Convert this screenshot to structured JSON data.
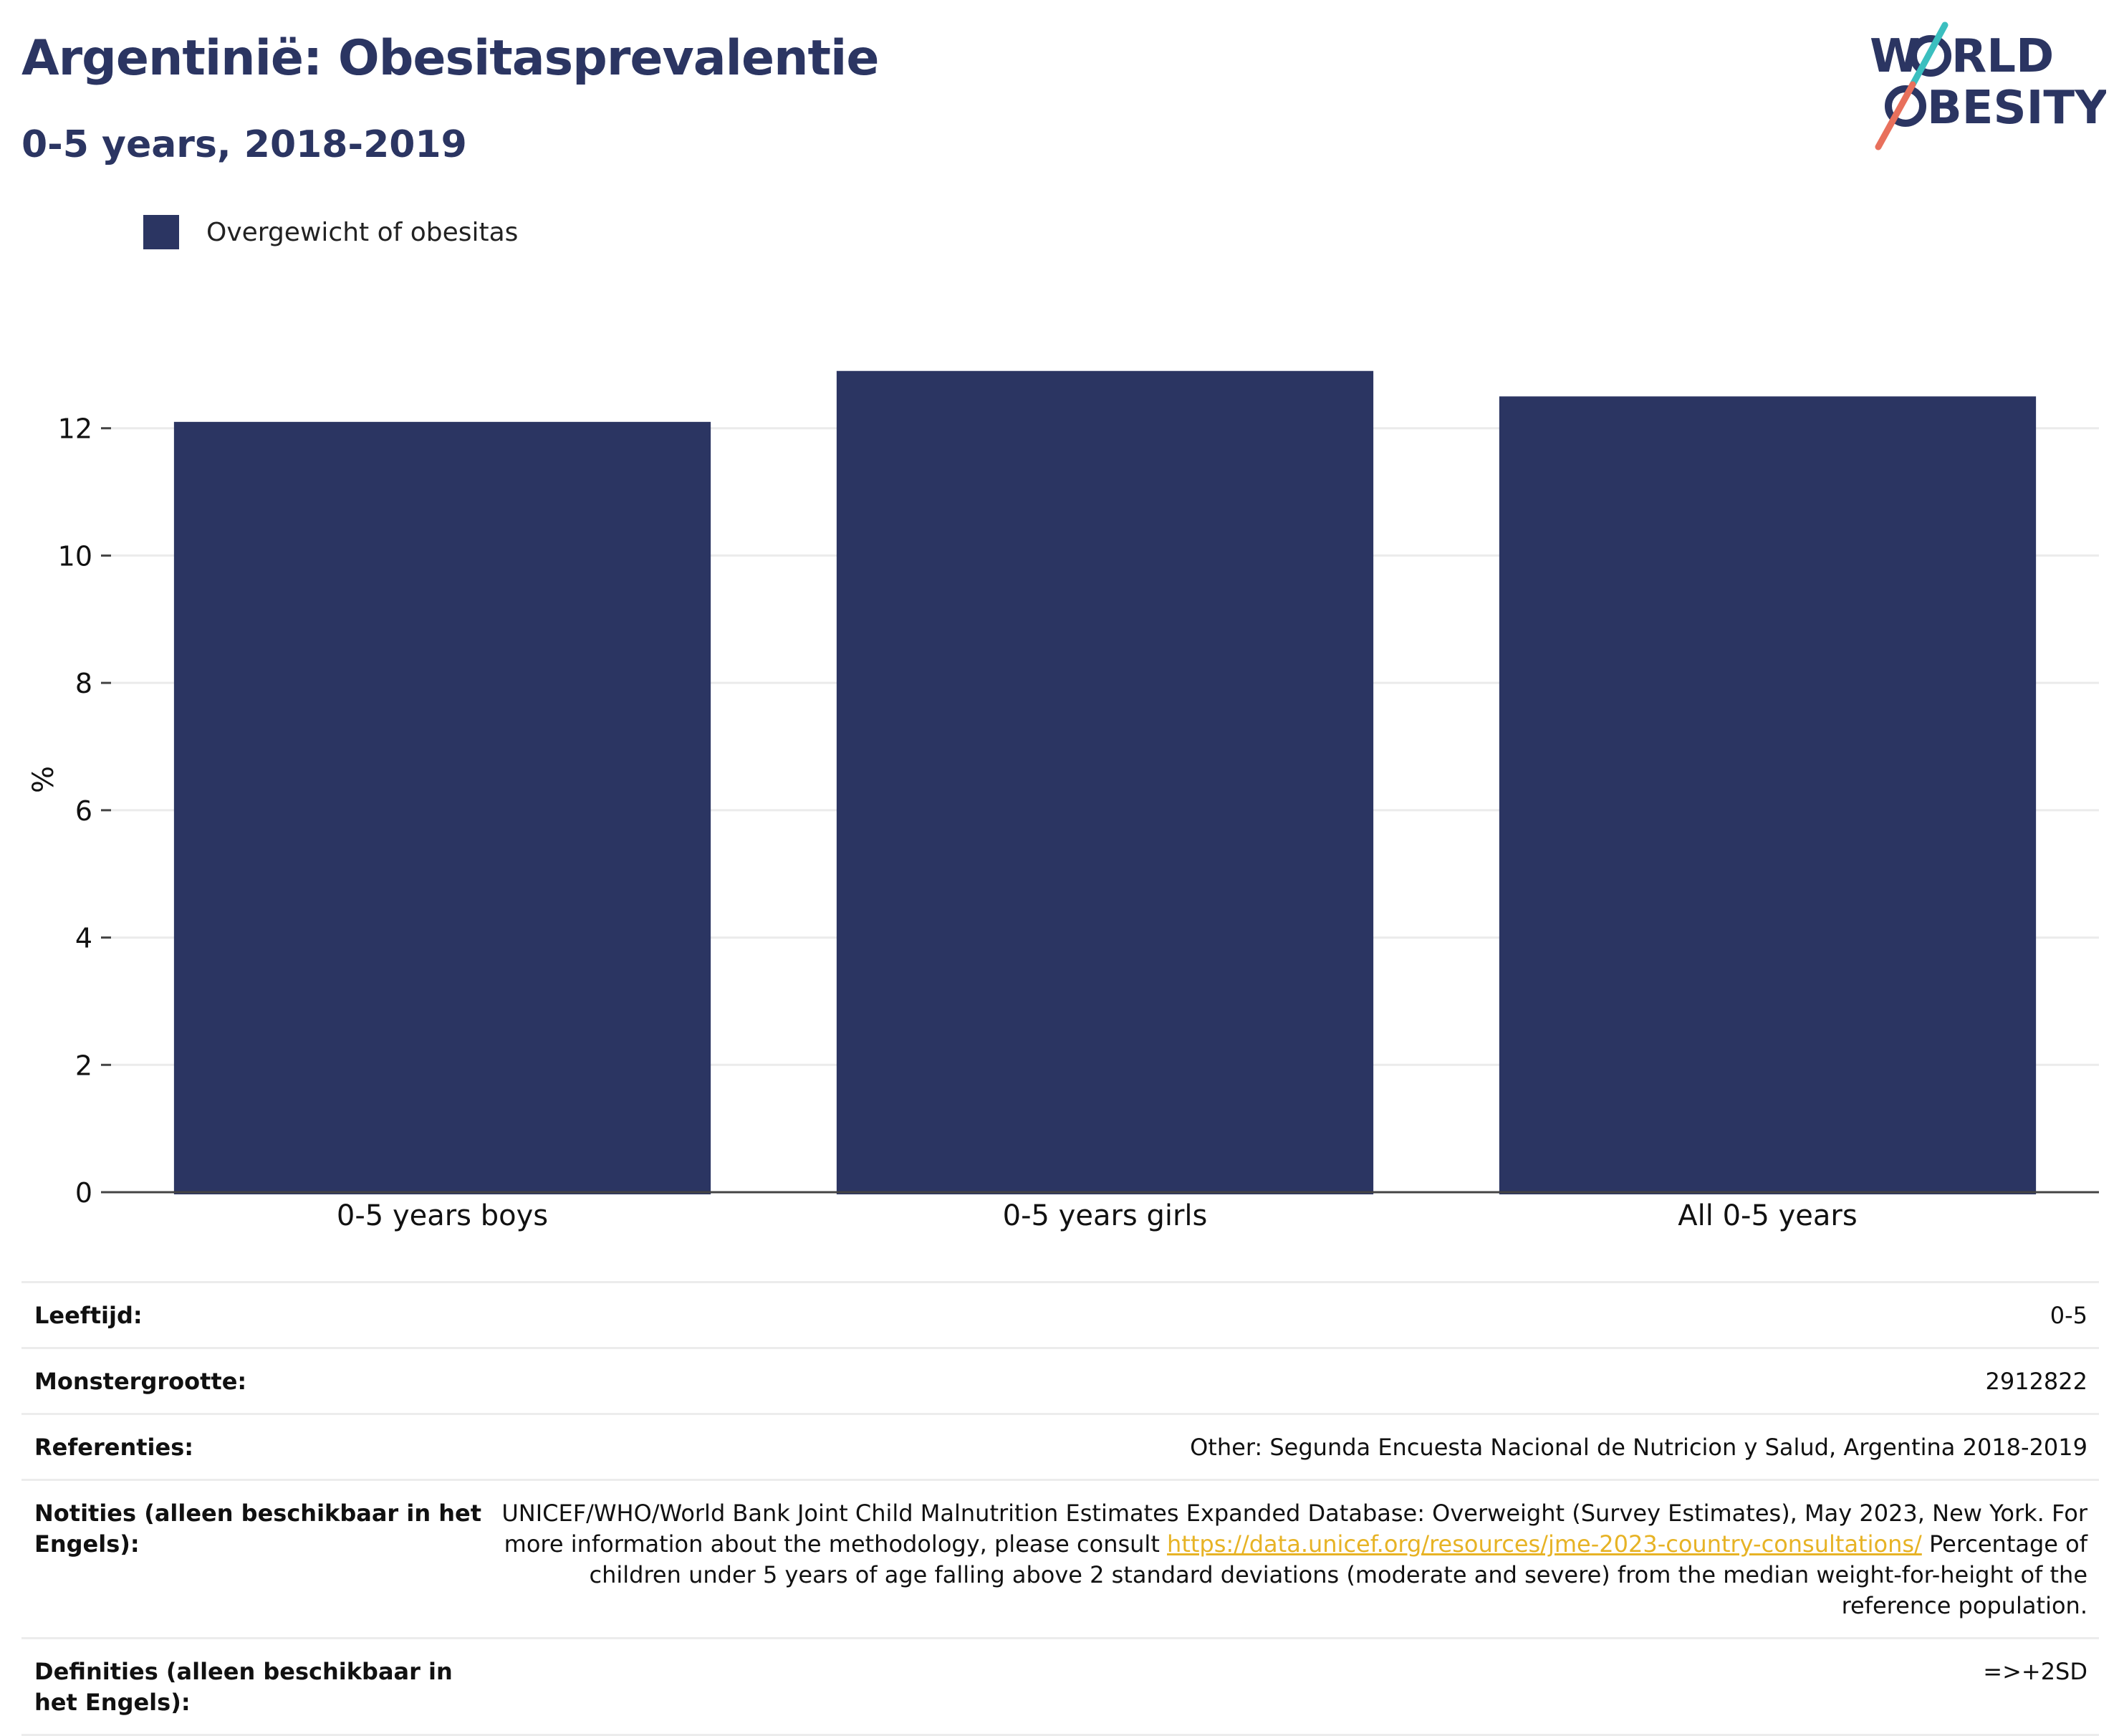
{
  "title": "Argentinië: Obesitasprevalentie",
  "subtitle": "0-5 years, 2018-2019",
  "logo": {
    "line1_pre": "W",
    "line1_post": "RLD",
    "line2_post": "BESITY",
    "colors": {
      "text": "#2b3562",
      "slash_top": "#3bbfbf",
      "slash_bottom": "#e8705c"
    }
  },
  "colors": {
    "bar": "#2b3562",
    "grid": "#ebebeb",
    "axis": "#444444",
    "link": "#e7b325"
  },
  "chart_data": {
    "type": "bar",
    "categories": [
      "0-5 years boys",
      "0-5 years girls",
      "All 0-5 years"
    ],
    "series": [
      {
        "name": "Overgewicht of obesitas",
        "values": [
          12.1,
          12.9,
          12.5
        ]
      }
    ],
    "xlabel": "",
    "ylabel": "%",
    "ylim": [
      0,
      14
    ],
    "yticks": [
      0,
      2,
      4,
      6,
      8,
      10,
      12
    ],
    "grid": true,
    "legend_position": "top-left"
  },
  "info": {
    "rows": [
      {
        "label": "Leeftijd:",
        "value": "0-5"
      },
      {
        "label": "Monstergrootte:",
        "value": "2912822"
      },
      {
        "label": "Referenties:",
        "value": "Other: Segunda Encuesta Nacional de Nutricion y Salud, Argentina 2018-2019"
      }
    ],
    "notes": {
      "label": "Notities (alleen beschikbaar in het Engels):",
      "text_before": "UNICEF/WHO/World Bank Joint Child Malnutrition Estimates Expanded Database: Overweight (Survey Estimates), May 2023, New York. For more information about the methodology, please consult ",
      "link": "https://data.unicef.org/resources/jme-2023-country-consultations/",
      "text_after": " Percentage of children under 5 years of age falling above 2 standard deviations (moderate and severe) from the median weight-for-height of the reference population."
    },
    "definitions": {
      "label": "Definities (alleen beschikbaar in het Engels):",
      "value": "=>+2SD"
    }
  }
}
